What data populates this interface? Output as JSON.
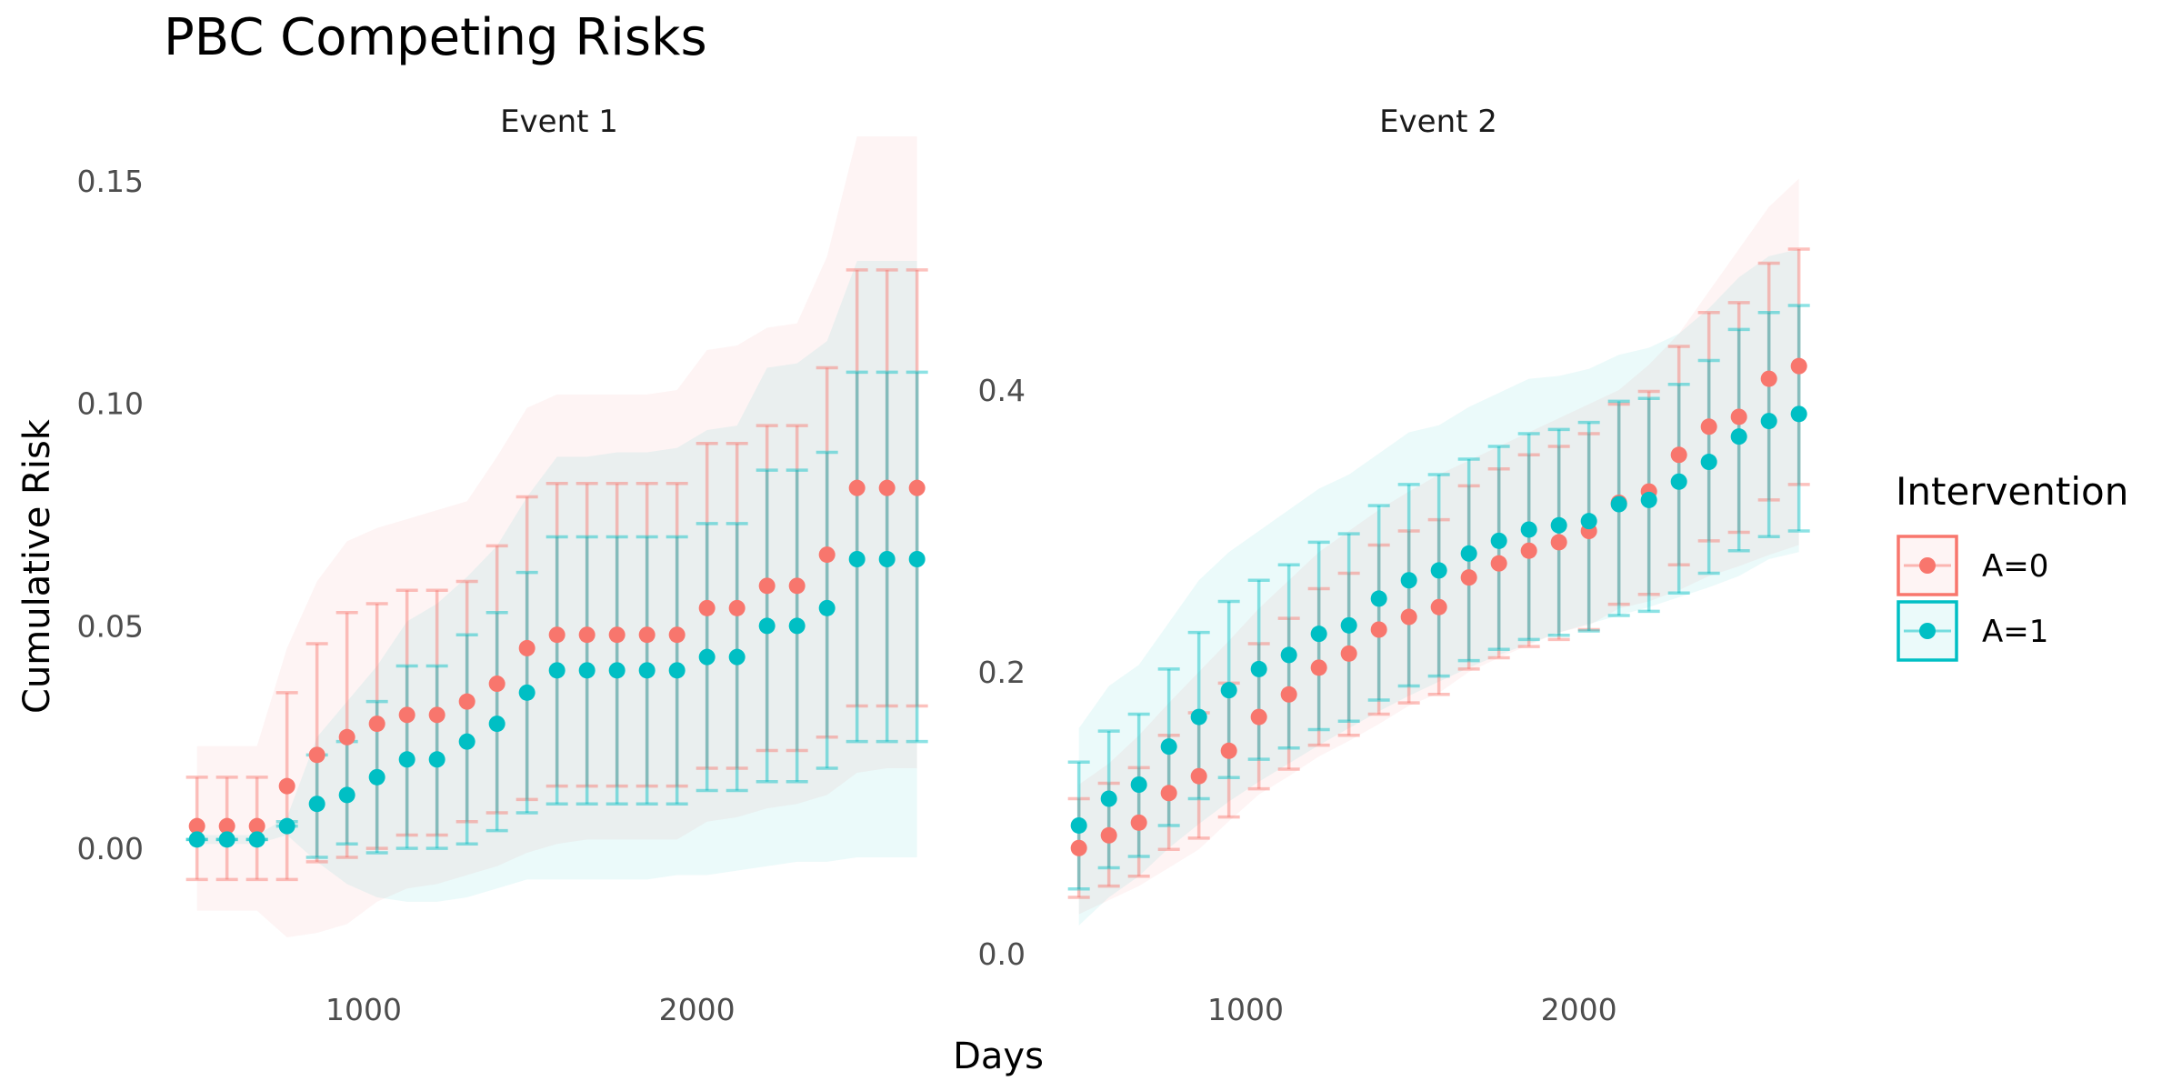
{
  "title": "PBC Competing Risks",
  "xlabel": "Days",
  "ylabel": "Cumulative Risk",
  "legend": {
    "title": "Intervention",
    "placement": "right",
    "entries": [
      {
        "label": "A=0",
        "color": "#F8766D"
      },
      {
        "label": "A=1",
        "color": "#00BFC4"
      }
    ]
  },
  "chart_data": [
    {
      "type": "scatter",
      "panel_title": "Event 1",
      "x_ticks": [
        1000,
        2000
      ],
      "y_ticks": [
        "0.00",
        "0.05",
        "0.10",
        "0.15"
      ],
      "xlim": [
        400,
        2800
      ],
      "ylim": [
        -0.03,
        0.16
      ],
      "grid": false,
      "x": [
        500,
        590,
        680,
        770,
        860,
        950,
        1040,
        1130,
        1220,
        1310,
        1400,
        1490,
        1580,
        1670,
        1760,
        1850,
        1940,
        2030,
        2120,
        2210,
        2300,
        2390,
        2480,
        2570,
        2660
      ],
      "series": [
        {
          "name": "A=0",
          "color": "#F8766D",
          "values": [
            0.005,
            0.005,
            0.005,
            0.014,
            0.021,
            0.025,
            0.028,
            0.03,
            0.03,
            0.033,
            0.037,
            0.045,
            0.048,
            0.048,
            0.048,
            0.048,
            0.048,
            0.054,
            0.054,
            0.059,
            0.059,
            0.066,
            0.081,
            0.081,
            0.081
          ],
          "lower": [
            -0.007,
            -0.007,
            -0.007,
            -0.007,
            -0.003,
            -0.002,
            0.0,
            0.003,
            0.003,
            0.006,
            0.008,
            0.011,
            0.014,
            0.014,
            0.014,
            0.014,
            0.014,
            0.018,
            0.018,
            0.022,
            0.022,
            0.025,
            0.032,
            0.032,
            0.032
          ],
          "upper": [
            0.016,
            0.016,
            0.016,
            0.035,
            0.046,
            0.053,
            0.055,
            0.058,
            0.058,
            0.06,
            0.068,
            0.079,
            0.082,
            0.082,
            0.082,
            0.082,
            0.082,
            0.091,
            0.091,
            0.095,
            0.095,
            0.108,
            0.13,
            0.13,
            0.13
          ],
          "band_lower": [
            -0.014,
            -0.014,
            -0.014,
            -0.02,
            -0.019,
            -0.017,
            -0.012,
            -0.009,
            -0.008,
            -0.006,
            -0.004,
            -0.001,
            0.001,
            0.002,
            0.002,
            0.002,
            0.002,
            0.006,
            0.007,
            0.009,
            0.01,
            0.012,
            0.017,
            0.018,
            0.018
          ],
          "band_upper": [
            0.023,
            0.023,
            0.023,
            0.045,
            0.06,
            0.069,
            0.072,
            0.074,
            0.076,
            0.078,
            0.088,
            0.099,
            0.102,
            0.102,
            0.102,
            0.102,
            0.103,
            0.112,
            0.113,
            0.117,
            0.118,
            0.133,
            0.16,
            0.16,
            0.16
          ]
        },
        {
          "name": "A=1",
          "color": "#00BFC4",
          "values": [
            0.002,
            0.002,
            0.002,
            0.005,
            0.01,
            0.012,
            0.016,
            0.02,
            0.02,
            0.024,
            0.028,
            0.035,
            0.04,
            0.04,
            0.04,
            0.04,
            0.04,
            0.043,
            0.043,
            0.05,
            0.05,
            0.054,
            0.065,
            0.065,
            0.065
          ],
          "lower": [
            0.002,
            0.002,
            0.002,
            0.005,
            -0.002,
            0.001,
            -0.001,
            0.0,
            0.0,
            0.001,
            0.004,
            0.008,
            0.01,
            0.01,
            0.01,
            0.01,
            0.01,
            0.013,
            0.013,
            0.015,
            0.015,
            0.018,
            0.024,
            0.024,
            0.024
          ],
          "upper": [
            0.002,
            0.002,
            0.002,
            0.006,
            0.021,
            0.024,
            0.033,
            0.041,
            0.041,
            0.048,
            0.053,
            0.062,
            0.07,
            0.07,
            0.07,
            0.07,
            0.07,
            0.073,
            0.073,
            0.085,
            0.085,
            0.089,
            0.107,
            0.107,
            0.107
          ],
          "band_lower": [
            0.001,
            0.001,
            0.001,
            0.003,
            -0.003,
            -0.008,
            -0.011,
            -0.012,
            -0.012,
            -0.011,
            -0.009,
            -0.007,
            -0.007,
            -0.007,
            -0.007,
            -0.007,
            -0.006,
            -0.006,
            -0.005,
            -0.004,
            -0.003,
            -0.003,
            -0.002,
            -0.002,
            -0.002
          ],
          "band_upper": [
            0.003,
            0.003,
            0.003,
            0.007,
            0.025,
            0.033,
            0.041,
            0.051,
            0.055,
            0.061,
            0.068,
            0.079,
            0.088,
            0.088,
            0.089,
            0.089,
            0.09,
            0.094,
            0.095,
            0.108,
            0.109,
            0.114,
            0.132,
            0.132,
            0.132
          ]
        }
      ]
    },
    {
      "type": "scatter",
      "panel_title": "Event 2",
      "x_ticks": [
        1000,
        2000
      ],
      "y_ticks": [
        "0.0",
        "0.2",
        "0.4"
      ],
      "xlim": [
        400,
        2800
      ],
      "ylim": [
        -0.02,
        0.58
      ],
      "grid": false,
      "x": [
        500,
        590,
        680,
        770,
        860,
        950,
        1040,
        1130,
        1220,
        1310,
        1400,
        1490,
        1580,
        1670,
        1760,
        1850,
        1940,
        2030,
        2120,
        2210,
        2300,
        2390,
        2480,
        2570,
        2660
      ],
      "series": [
        {
          "name": "A=0",
          "color": "#F8766D",
          "values": [
            0.075,
            0.084,
            0.093,
            0.114,
            0.126,
            0.144,
            0.168,
            0.184,
            0.203,
            0.213,
            0.23,
            0.239,
            0.246,
            0.267,
            0.277,
            0.286,
            0.292,
            0.3,
            0.32,
            0.328,
            0.354,
            0.374,
            0.381,
            0.408,
            0.417
          ],
          "lower": [
            0.04,
            0.048,
            0.055,
            0.074,
            0.082,
            0.097,
            0.117,
            0.131,
            0.148,
            0.155,
            0.17,
            0.178,
            0.184,
            0.202,
            0.21,
            0.218,
            0.223,
            0.23,
            0.248,
            0.255,
            0.276,
            0.293,
            0.299,
            0.322,
            0.333
          ],
          "upper": [
            0.11,
            0.121,
            0.132,
            0.155,
            0.171,
            0.192,
            0.22,
            0.238,
            0.259,
            0.27,
            0.29,
            0.3,
            0.308,
            0.332,
            0.344,
            0.354,
            0.36,
            0.369,
            0.39,
            0.399,
            0.431,
            0.455,
            0.462,
            0.49,
            0.5
          ]
        },
        {
          "name": "A=1",
          "color": "#00BFC4",
          "values": [
            0.091,
            0.11,
            0.12,
            0.147,
            0.168,
            0.187,
            0.202,
            0.212,
            0.227,
            0.233,
            0.252,
            0.265,
            0.272,
            0.284,
            0.293,
            0.301,
            0.304,
            0.307,
            0.319,
            0.322,
            0.335,
            0.349,
            0.367,
            0.378,
            0.383
          ],
          "lower": [
            0.046,
            0.061,
            0.069,
            0.091,
            0.11,
            0.125,
            0.138,
            0.146,
            0.159,
            0.165,
            0.18,
            0.19,
            0.197,
            0.208,
            0.216,
            0.223,
            0.226,
            0.229,
            0.24,
            0.243,
            0.256,
            0.27,
            0.286,
            0.296,
            0.3
          ],
          "upper": [
            0.136,
            0.158,
            0.17,
            0.202,
            0.228,
            0.25,
            0.265,
            0.276,
            0.292,
            0.298,
            0.318,
            0.333,
            0.34,
            0.351,
            0.36,
            0.369,
            0.372,
            0.377,
            0.392,
            0.394,
            0.404,
            0.421,
            0.443,
            0.455,
            0.46
          ]
        }
      ],
      "bands": [
        {
          "name": "A=0",
          "color": "#F8766D",
          "x": [
            500,
            590,
            680,
            770,
            860,
            950,
            1040,
            1130,
            1220,
            1310,
            1400,
            1490,
            1580,
            1670,
            1760,
            1850,
            1940,
            2030,
            2120,
            2210,
            2300,
            2390,
            2480,
            2570,
            2660
          ],
          "lower": [
            0.028,
            0.038,
            0.048,
            0.061,
            0.074,
            0.094,
            0.113,
            0.126,
            0.14,
            0.151,
            0.163,
            0.176,
            0.185,
            0.2,
            0.21,
            0.219,
            0.228,
            0.233,
            0.245,
            0.25,
            0.258,
            0.268,
            0.275,
            0.283,
            0.29
          ],
          "upper": [
            0.12,
            0.135,
            0.155,
            0.178,
            0.2,
            0.222,
            0.245,
            0.265,
            0.285,
            0.3,
            0.315,
            0.328,
            0.34,
            0.35,
            0.36,
            0.37,
            0.38,
            0.39,
            0.4,
            0.418,
            0.44,
            0.47,
            0.5,
            0.53,
            0.55
          ]
        },
        {
          "name": "A=1",
          "color": "#00BFC4",
          "x": [
            500,
            590,
            680,
            770,
            860,
            950,
            1040,
            1130,
            1220,
            1310,
            1400,
            1490,
            1580,
            1670,
            1760,
            1850,
            1940,
            2030,
            2120,
            2210,
            2300,
            2390,
            2480,
            2570,
            2660
          ],
          "lower": [
            0.02,
            0.04,
            0.055,
            0.075,
            0.092,
            0.108,
            0.122,
            0.135,
            0.148,
            0.16,
            0.172,
            0.183,
            0.193,
            0.203,
            0.212,
            0.22,
            0.228,
            0.234,
            0.24,
            0.246,
            0.253,
            0.26,
            0.268,
            0.28,
            0.285
          ],
          "upper": [
            0.16,
            0.19,
            0.205,
            0.235,
            0.265,
            0.285,
            0.3,
            0.315,
            0.33,
            0.34,
            0.355,
            0.37,
            0.375,
            0.388,
            0.398,
            0.408,
            0.41,
            0.415,
            0.425,
            0.43,
            0.44,
            0.458,
            0.48,
            0.495,
            0.5
          ]
        }
      ]
    }
  ]
}
